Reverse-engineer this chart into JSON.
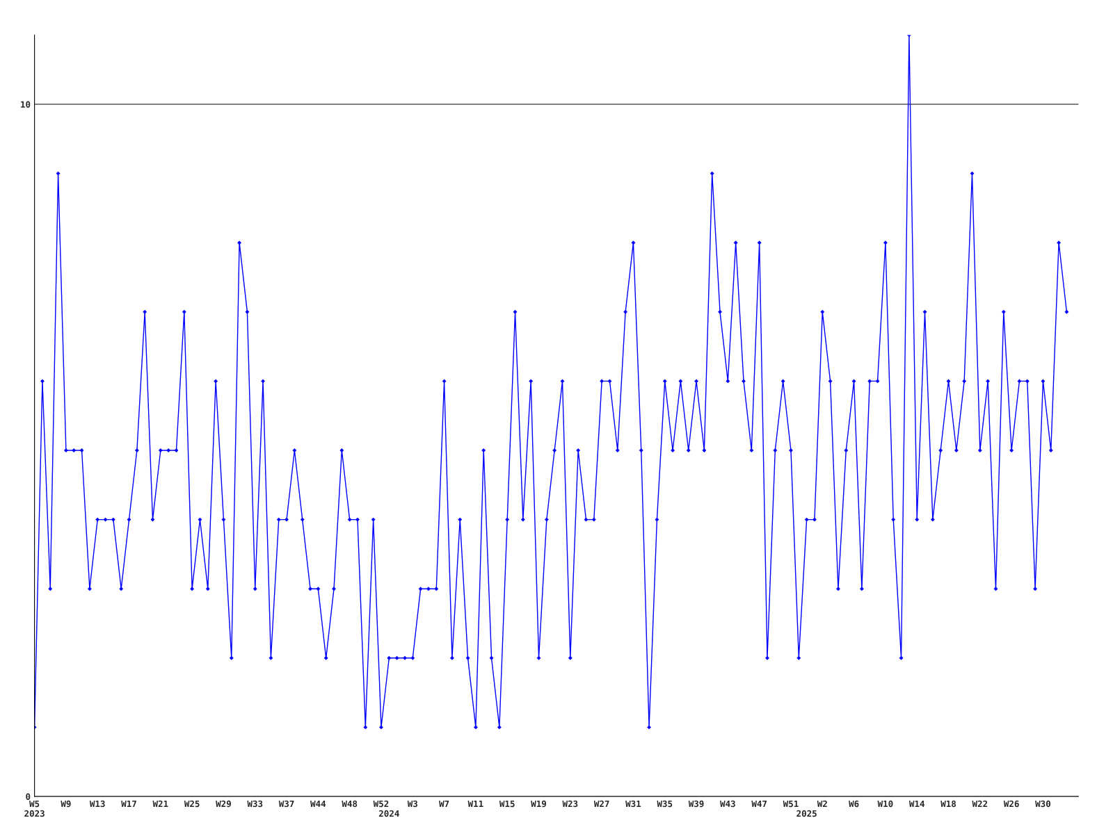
{
  "chart_data": {
    "type": "line",
    "categories": [
      "W5\n2023",
      null,
      null,
      null,
      "W9",
      null,
      null,
      null,
      "W13",
      null,
      null,
      null,
      "W17",
      null,
      null,
      null,
      "W21",
      null,
      null,
      null,
      "W25",
      null,
      null,
      null,
      "W29",
      null,
      null,
      null,
      "W33",
      null,
      null,
      null,
      "W37",
      null,
      null,
      null,
      "W44",
      null,
      null,
      null,
      "W48",
      null,
      null,
      null,
      "W52",
      "\n2024",
      null,
      null,
      "W3",
      null,
      null,
      null,
      "W7",
      null,
      null,
      null,
      "W11",
      null,
      null,
      null,
      "W15",
      null,
      null,
      null,
      "W19",
      null,
      null,
      null,
      "W23",
      null,
      null,
      null,
      "W27",
      null,
      null,
      null,
      "W31",
      null,
      null,
      null,
      "W35",
      null,
      null,
      null,
      "W39",
      null,
      null,
      null,
      "W43",
      null,
      null,
      null,
      "W47",
      null,
      null,
      null,
      "W51",
      null,
      "\n2025",
      null,
      "W2",
      null,
      null,
      null,
      "W6",
      null,
      null,
      null,
      "W10",
      null,
      null,
      null,
      "W14",
      null,
      null,
      null,
      "W18",
      null,
      null,
      null,
      "W22",
      null,
      null,
      null,
      "W26",
      null,
      null,
      null,
      "W30",
      null,
      null,
      null
    ],
    "series": [
      {
        "color": "#0000ff",
        "values": [
          1,
          6,
          3,
          9,
          5,
          5,
          5,
          3,
          4,
          4,
          4,
          3,
          4,
          5,
          7,
          4,
          5,
          5,
          5,
          7,
          3,
          4,
          3,
          6,
          4,
          2,
          8,
          7,
          3,
          6,
          2,
          4,
          4,
          5,
          4,
          3,
          3,
          2,
          3,
          5,
          4,
          4,
          1,
          4,
          1,
          2,
          2,
          2,
          2,
          3,
          3,
          3,
          6,
          2,
          4,
          2,
          1,
          5,
          2,
          1,
          4,
          7,
          4,
          6,
          2,
          4,
          5,
          6,
          2,
          5,
          4,
          4,
          6,
          6,
          5,
          7,
          8,
          5,
          1,
          4,
          6,
          5,
          6,
          5,
          6,
          5,
          9,
          7,
          6,
          8,
          6,
          5,
          8,
          2,
          5,
          6,
          5,
          2,
          4,
          4,
          7,
          6,
          3,
          5,
          6,
          3,
          6,
          6,
          8,
          4,
          2,
          11,
          4,
          7,
          4,
          5,
          6,
          5,
          6,
          9,
          5,
          6,
          3,
          7,
          5,
          6,
          6,
          3,
          6,
          5,
          8,
          7
        ]
      }
    ],
    "ylim": [
      0,
      11
    ],
    "yticks": [
      0,
      10
    ],
    "grid": "y",
    "marker": "diamond",
    "line_style": "solid",
    "legend": false
  }
}
